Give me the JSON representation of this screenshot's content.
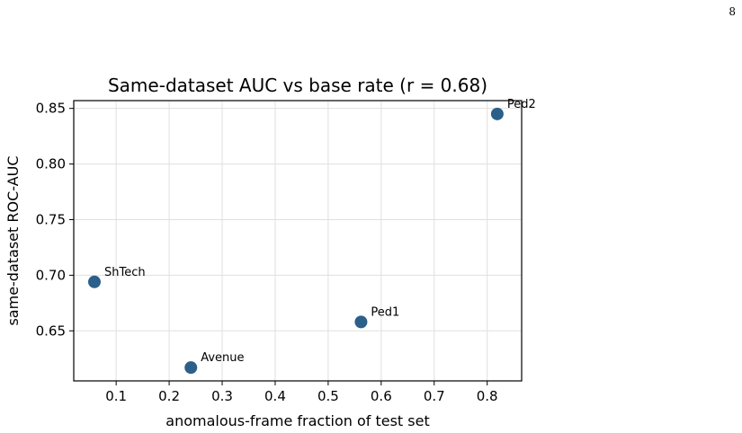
{
  "page": {
    "page_number": "8"
  },
  "chart_data": {
    "type": "scatter",
    "title": "Same-dataset AUC vs base rate (r = 0.68)",
    "xlabel": "anomalous-frame fraction of test set",
    "ylabel": "same-dataset ROC-AUC",
    "xlim": [
      0.02,
      0.865
    ],
    "ylim": [
      0.605,
      0.857
    ],
    "xticks": [
      0.1,
      0.2,
      0.3,
      0.4,
      0.5,
      0.6,
      0.7,
      0.8
    ],
    "xtick_labels": [
      "0.1",
      "0.2",
      "0.3",
      "0.4",
      "0.5",
      "0.6",
      "0.7",
      "0.8"
    ],
    "yticks": [
      0.65,
      0.7,
      0.75,
      0.8,
      0.85
    ],
    "ytick_labels": [
      "0.65",
      "0.70",
      "0.75",
      "0.80",
      "0.85"
    ],
    "grid": true,
    "marker_color": "#2c5f8a",
    "points": [
      {
        "label": "ShTech",
        "x": 0.059,
        "y": 0.694
      },
      {
        "label": "Avenue",
        "x": 0.241,
        "y": 0.617
      },
      {
        "label": "Ped1",
        "x": 0.562,
        "y": 0.658
      },
      {
        "label": "Ped2",
        "x": 0.819,
        "y": 0.845
      }
    ]
  }
}
